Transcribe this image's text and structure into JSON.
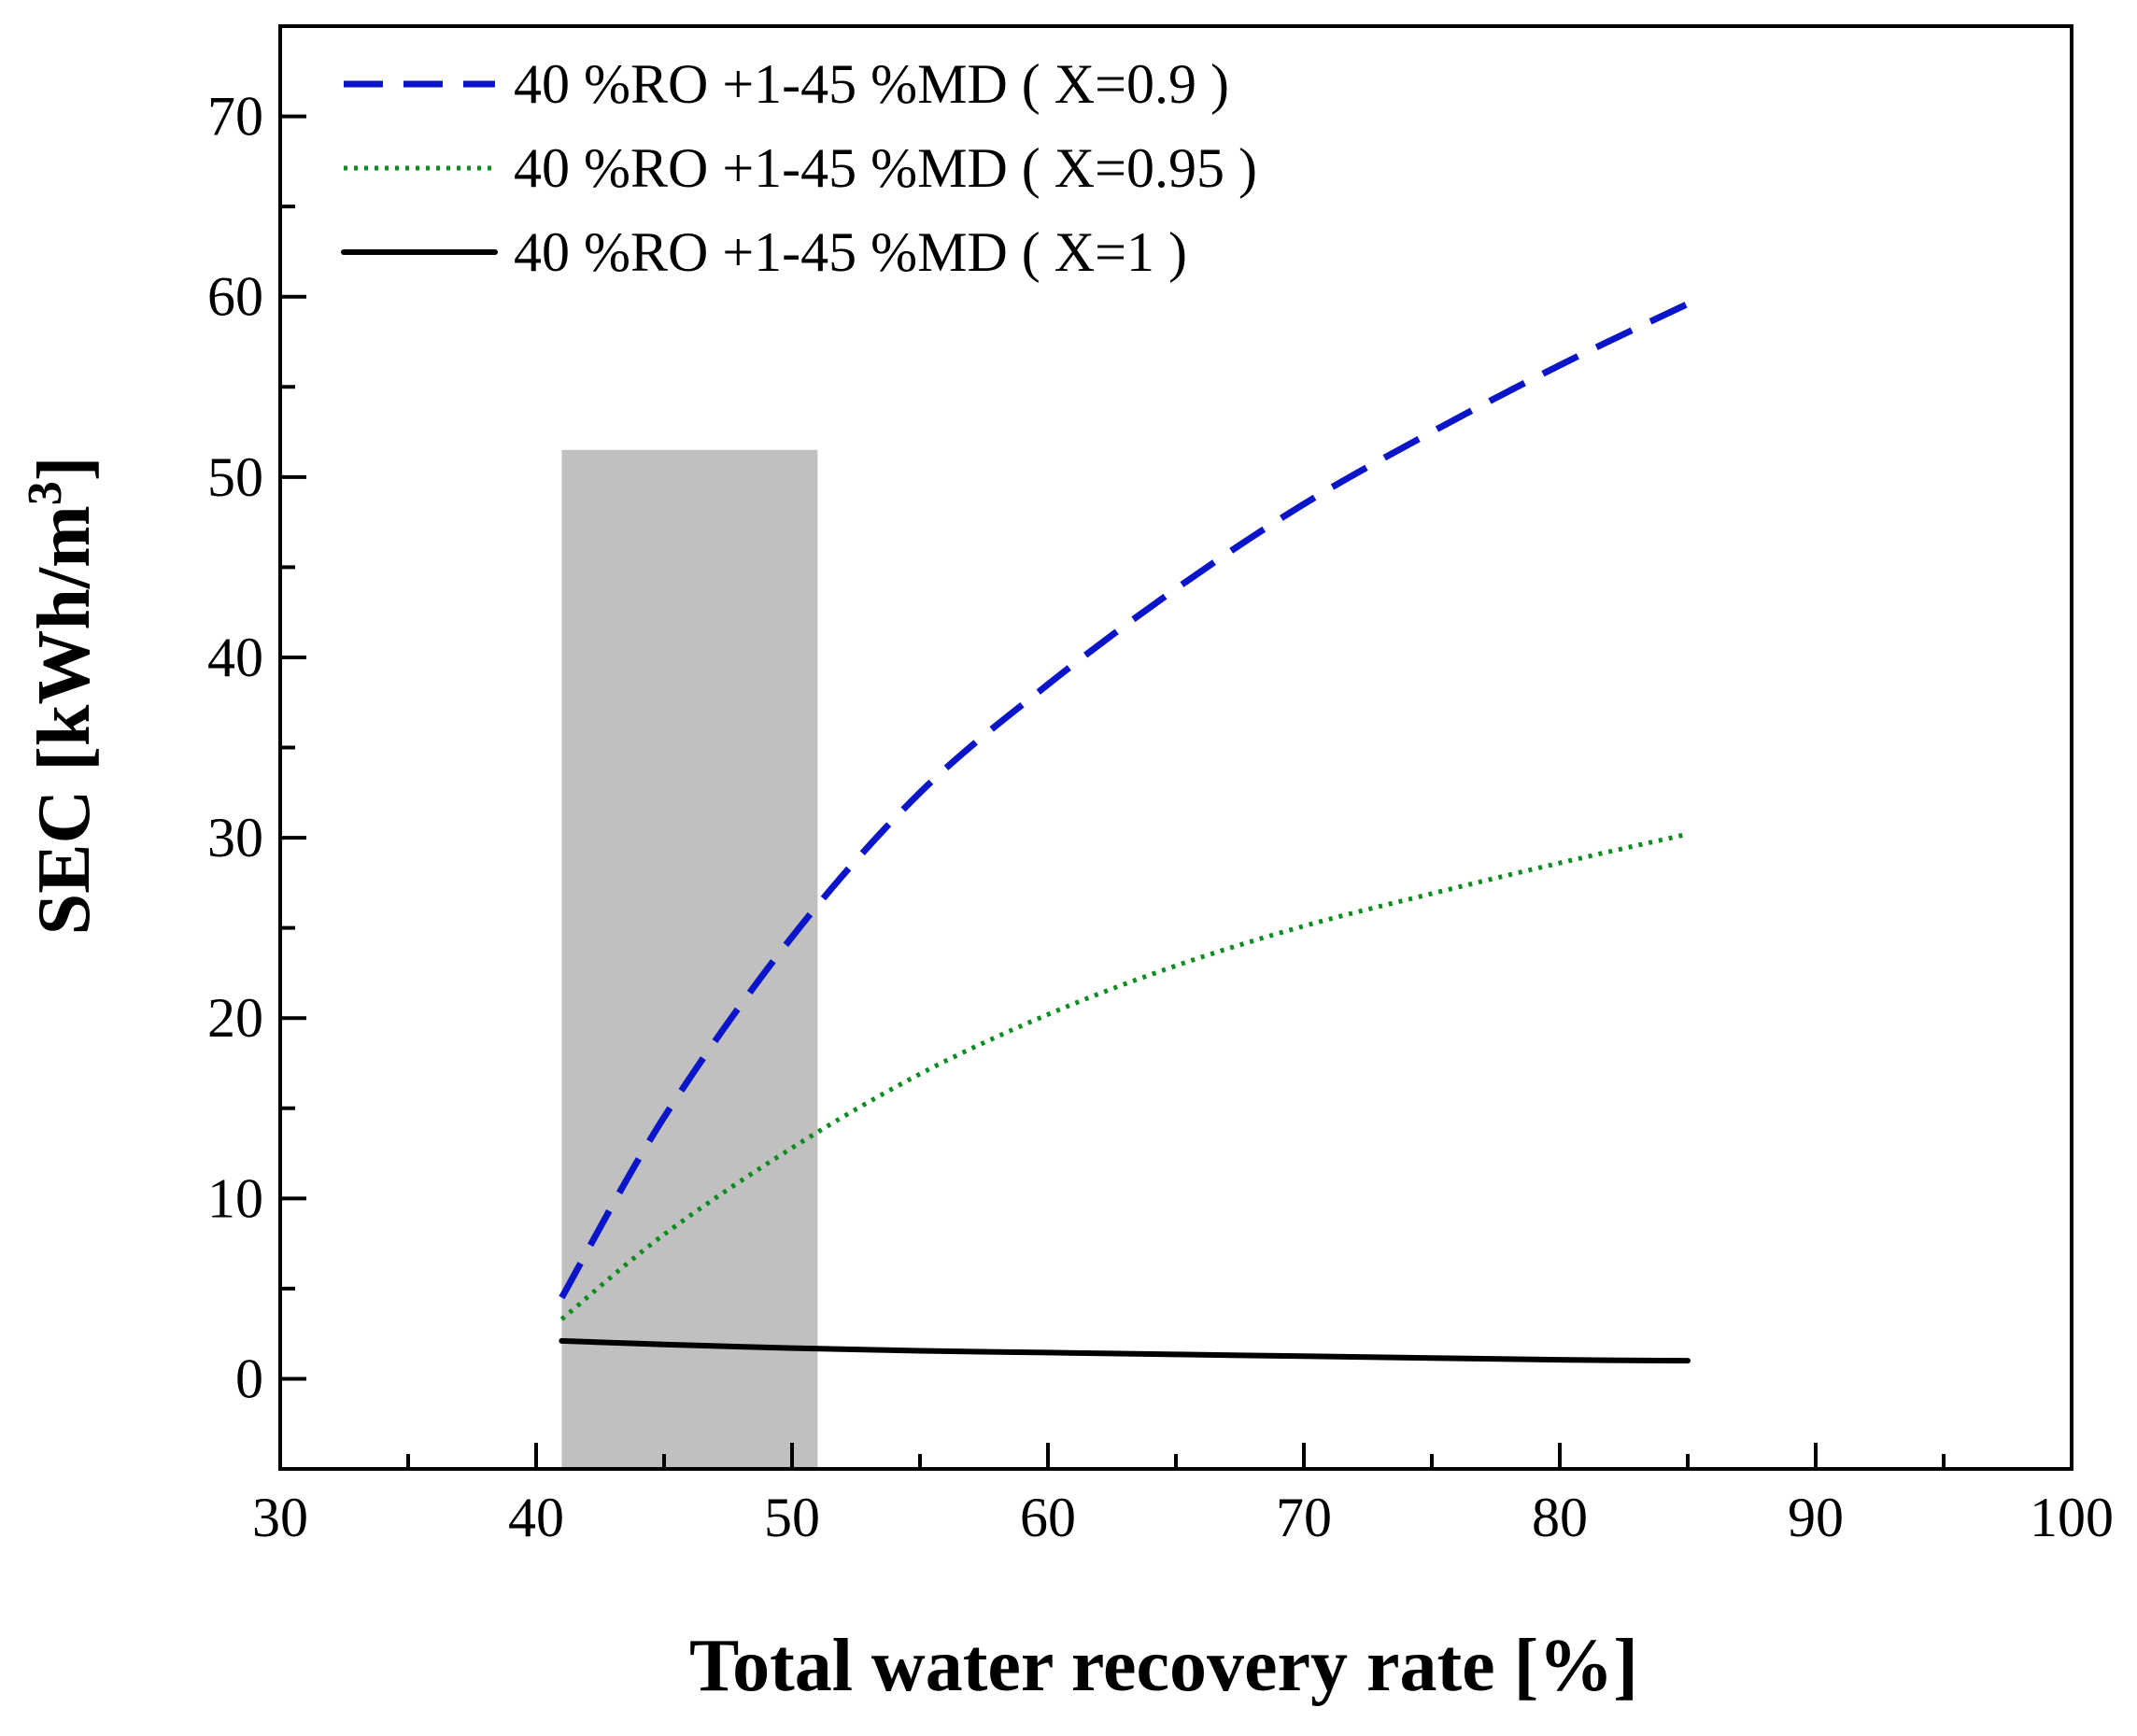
{
  "chart_data": {
    "type": "line",
    "xlabel": "Total  water recovery rate [%]",
    "ylabel": "SEC [kWh/m",
    "ylabel_superscript": "3",
    "ylabel_close": "]",
    "xlim": [
      30,
      100
    ],
    "ylim": [
      -5,
      75
    ],
    "xticks": [
      30,
      40,
      50,
      60,
      70,
      80,
      90,
      100
    ],
    "yticks": [
      0,
      10,
      20,
      30,
      40,
      50,
      60,
      70
    ],
    "grid": false,
    "legend_position": "top-left",
    "shaded_region": {
      "x": [
        41,
        51
      ],
      "y": [
        -5,
        51.5
      ],
      "color": "#c0c0c0"
    },
    "series": [
      {
        "name": "40 %RO +1-45 %MD ( X=0.9 )",
        "color": "#0a14c8",
        "style": "dashed",
        "x": [
          41,
          45,
          50,
          55,
          60,
          65,
          70,
          75,
          80,
          85
        ],
        "y": [
          4.5,
          14.5,
          24.5,
          32.5,
          38.5,
          43.8,
          48.5,
          52.5,
          56.2,
          59.6
        ]
      },
      {
        "name": "40 %RO +1-45 %MD ( X=0.95 )",
        "color": "#0a8c1e",
        "style": "dotted",
        "x": [
          41,
          45,
          50,
          55,
          60,
          65,
          70,
          75,
          80,
          85
        ],
        "y": [
          3.3,
          8.0,
          12.8,
          16.9,
          20.2,
          22.9,
          25.1,
          26.9,
          28.6,
          30.2
        ]
      },
      {
        "name": "40 %RO +1-45 %MD ( X=1 )",
        "color": "#000000",
        "style": "solid",
        "x": [
          41,
          45,
          50,
          55,
          60,
          65,
          70,
          75,
          80,
          85
        ],
        "y": [
          2.1,
          1.9,
          1.7,
          1.55,
          1.45,
          1.35,
          1.25,
          1.15,
          1.05,
          1.0
        ]
      }
    ]
  }
}
